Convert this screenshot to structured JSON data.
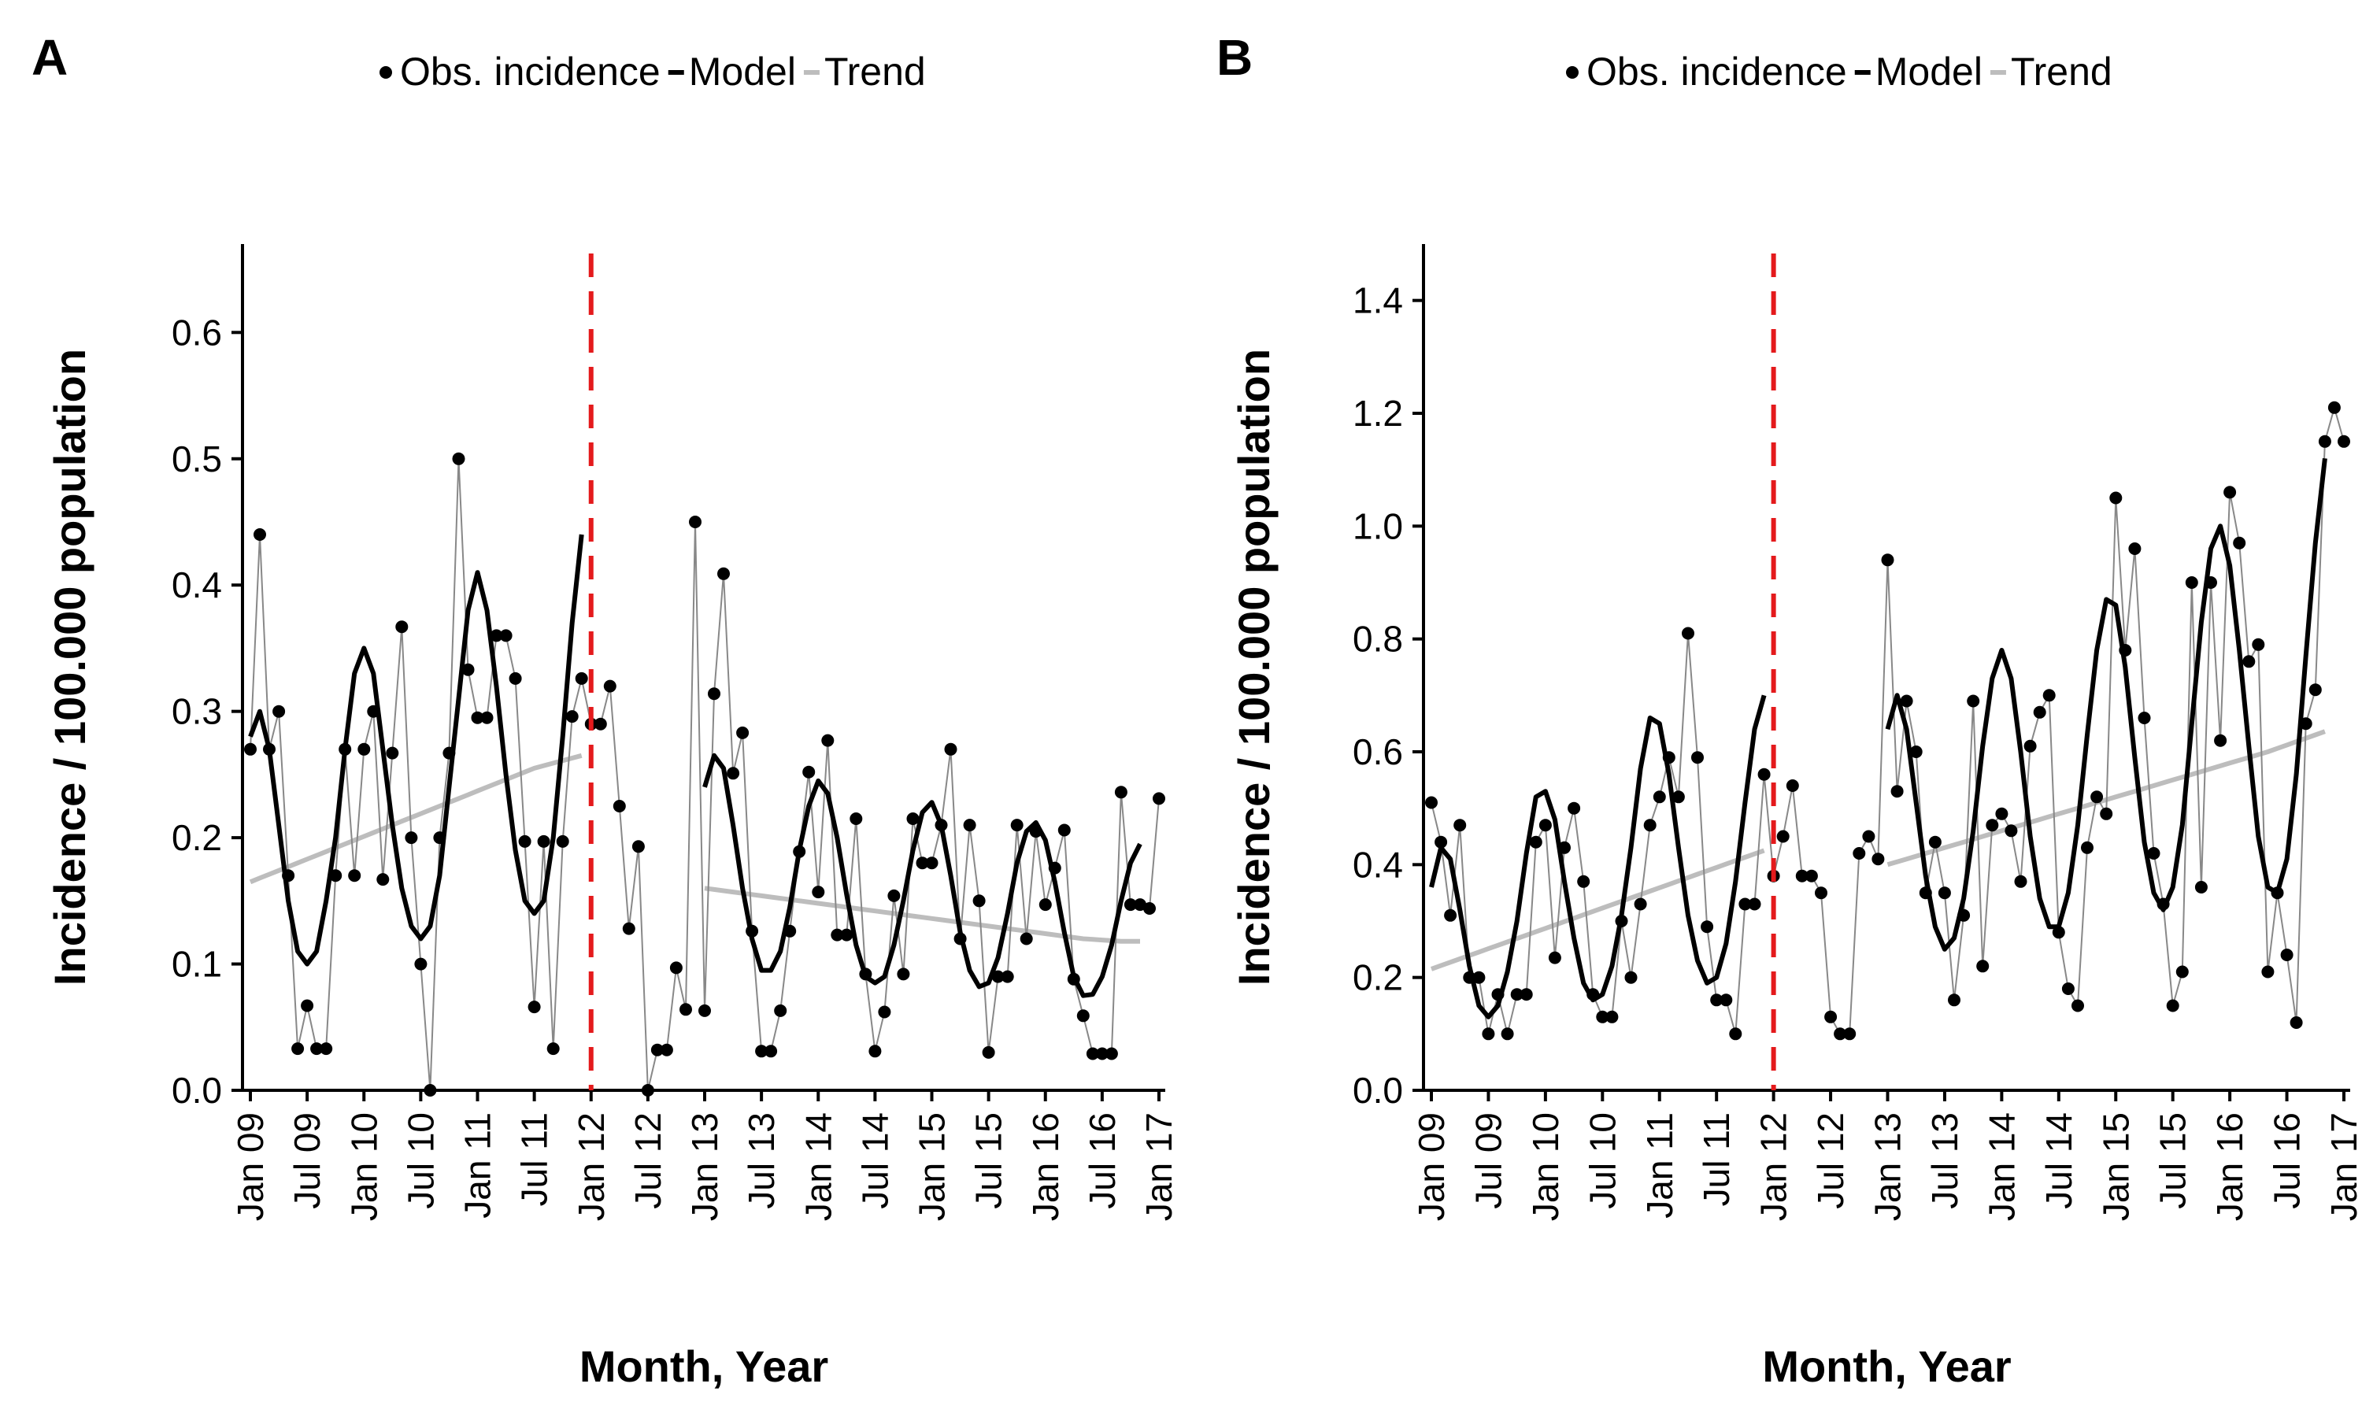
{
  "chart_data": [
    {
      "panel": "A",
      "type": "line",
      "xlabel": "Month, Year",
      "ylabel": "Incidence / 100.000 population",
      "ylim": [
        0,
        0.67
      ],
      "yticks": [
        "0.0",
        "0.1",
        "0.2",
        "0.3",
        "0.4",
        "0.5",
        "0.6"
      ],
      "xticks": [
        "Jan 09",
        "Jul 09",
        "Jan 10",
        "Jul 10",
        "Jan 11",
        "Jul 11",
        "Jan 12",
        "Jul 12",
        "Jan 13",
        "Jul 13",
        "Jan 14",
        "Jul 14",
        "Jan 15",
        "Jul 15",
        "Jan 16",
        "Jul 16",
        "Jan 17"
      ],
      "intervention": "Jan 12",
      "legend": [
        "Obs. incidence",
        "Model",
        "Trend"
      ],
      "legend_position": "top",
      "series": [
        {
          "name": "Obs. incidence",
          "values": [
            0.27,
            0.44,
            0.27,
            0.3,
            0.17,
            0.033,
            0.067,
            0.033,
            0.033,
            0.17,
            0.27,
            0.17,
            0.27,
            0.3,
            0.167,
            0.267,
            0.367,
            0.2,
            0.1,
            0.0,
            0.2,
            0.267,
            0.5,
            0.333,
            0.295,
            0.295,
            0.36,
            0.36,
            0.326,
            0.197,
            0.066,
            0.197,
            0.033,
            0.197,
            0.296,
            0.326,
            0.29,
            0.29,
            0.32,
            0.225,
            0.128,
            0.193,
            0.0,
            0.032,
            0.032,
            0.097,
            0.064,
            0.45,
            0.063,
            0.314,
            0.409,
            0.251,
            0.283,
            0.126,
            0.031,
            0.031,
            0.063,
            0.126,
            0.189,
            0.252,
            0.157,
            0.277,
            0.123,
            0.123,
            0.215,
            0.092,
            0.031,
            0.062,
            0.154,
            0.092,
            0.215,
            0.18,
            0.18,
            0.21,
            0.27,
            0.12,
            0.21,
            0.15,
            0.03,
            0.09,
            0.09,
            0.21,
            0.12,
            0.205,
            0.147,
            0.176,
            0.206,
            0.088,
            0.059,
            0.029,
            0.029,
            0.029,
            0.236,
            0.147,
            0.147,
            0.144,
            0.231
          ]
        },
        {
          "name": "Model",
          "segments": [
            [
              0.28,
              0.3,
              0.27,
              0.21,
              0.15,
              0.11,
              0.1,
              0.11,
              0.15,
              0.2,
              0.27,
              0.33,
              0.35,
              0.33,
              0.27,
              0.21,
              0.16,
              0.13,
              0.12,
              0.13,
              0.17,
              0.24,
              0.31,
              0.38,
              0.41,
              0.38,
              0.32,
              0.25,
              0.19,
              0.15,
              0.14,
              0.15,
              0.2,
              0.28,
              0.37,
              0.44
            ],
            [
              0.24,
              0.265,
              0.255,
              0.21,
              0.16,
              0.12,
              0.095,
              0.095,
              0.11,
              0.145,
              0.19,
              0.225,
              0.245,
              0.235,
              0.2,
              0.155,
              0.115,
              0.09,
              0.085,
              0.09,
              0.115,
              0.15,
              0.19,
              0.22,
              0.228,
              0.21,
              0.17,
              0.125,
              0.095,
              0.082,
              0.085,
              0.105,
              0.14,
              0.18,
              0.205,
              0.212,
              0.198,
              0.165,
              0.125,
              0.09,
              0.075,
              0.076,
              0.09,
              0.115,
              0.15,
              0.18,
              0.195
            ]
          ]
        },
        {
          "name": "Trend",
          "segments": [
            [
              0.165,
              0.168,
              0.171,
              0.174,
              0.177,
              0.18,
              0.183,
              0.186,
              0.189,
              0.192,
              0.195,
              0.198,
              0.201,
              0.204,
              0.207,
              0.21,
              0.213,
              0.216,
              0.219,
              0.222,
              0.225,
              0.228,
              0.231,
              0.234,
              0.237,
              0.24,
              0.243,
              0.246,
              0.249,
              0.252,
              0.255,
              0.257,
              0.259,
              0.261,
              0.263,
              0.265
            ],
            [
              0.16,
              0.159,
              0.158,
              0.157,
              0.156,
              0.155,
              0.154,
              0.153,
              0.152,
              0.151,
              0.15,
              0.149,
              0.148,
              0.147,
              0.146,
              0.145,
              0.144,
              0.143,
              0.142,
              0.141,
              0.14,
              0.139,
              0.138,
              0.137,
              0.136,
              0.135,
              0.134,
              0.133,
              0.132,
              0.131,
              0.13,
              0.129,
              0.128,
              0.127,
              0.126,
              0.125,
              0.124,
              0.123,
              0.122,
              0.121,
              0.12,
              0.1195,
              0.119,
              0.1185,
              0.118,
              0.118,
              0.118
            ]
          ]
        }
      ]
    },
    {
      "panel": "B",
      "type": "line",
      "xlabel": "Month, Year",
      "ylabel": "Incidence / 100.000 population",
      "ylim": [
        0,
        1.5
      ],
      "yticks": [
        "0.0",
        "0.2",
        "0.4",
        "0.6",
        "0.8",
        "1.0",
        "1.2",
        "1.4"
      ],
      "xticks": [
        "Jan 09",
        "Jul 09",
        "Jan 10",
        "Jul 10",
        "Jan 11",
        "Jul 11",
        "Jan 12",
        "Jul 12",
        "Jan 13",
        "Jul 13",
        "Jan 14",
        "Jul 14",
        "Jan 15",
        "Jul 15",
        "Jan 16",
        "Jul 16",
        "Jan 17"
      ],
      "intervention": "Jan 12",
      "legend": [
        "Obs. incidence",
        "Model",
        "Trend"
      ],
      "legend_position": "top",
      "series": [
        {
          "name": "Obs. incidence",
          "values": [
            0.51,
            0.44,
            0.31,
            0.47,
            0.2,
            0.2,
            0.1,
            0.17,
            0.1,
            0.17,
            0.17,
            0.44,
            0.47,
            0.235,
            0.43,
            0.5,
            0.37,
            0.17,
            0.13,
            0.13,
            0.3,
            0.2,
            0.33,
            0.47,
            0.52,
            0.59,
            0.52,
            0.81,
            0.59,
            0.29,
            0.16,
            0.16,
            0.1,
            0.33,
            0.33,
            0.56,
            0.38,
            0.45,
            0.54,
            0.38,
            0.38,
            0.35,
            0.13,
            0.1,
            0.1,
            0.42,
            0.45,
            0.41,
            0.94,
            0.53,
            0.69,
            0.6,
            0.35,
            0.44,
            0.35,
            0.16,
            0.31,
            0.69,
            0.22,
            0.47,
            0.49,
            0.46,
            0.37,
            0.61,
            0.67,
            0.7,
            0.28,
            0.18,
            0.15,
            0.43,
            0.52,
            0.49,
            1.05,
            0.78,
            0.96,
            0.66,
            0.42,
            0.33,
            0.15,
            0.21,
            0.9,
            0.36,
            0.9,
            0.62,
            1.06,
            0.97,
            0.76,
            0.79,
            0.21,
            0.35,
            0.24,
            0.12,
            0.65,
            0.71,
            1.15,
            1.21,
            1.15
          ]
        },
        {
          "name": "Model",
          "segments": [
            [
              0.36,
              0.43,
              0.41,
              0.32,
              0.22,
              0.15,
              0.13,
              0.15,
              0.21,
              0.3,
              0.42,
              0.52,
              0.53,
              0.48,
              0.37,
              0.27,
              0.19,
              0.16,
              0.17,
              0.22,
              0.31,
              0.43,
              0.57,
              0.66,
              0.65,
              0.56,
              0.43,
              0.31,
              0.23,
              0.19,
              0.2,
              0.26,
              0.37,
              0.51,
              0.64,
              0.7
            ],
            [
              0.64,
              0.7,
              0.64,
              0.51,
              0.38,
              0.29,
              0.25,
              0.27,
              0.34,
              0.46,
              0.61,
              0.73,
              0.78,
              0.73,
              0.6,
              0.45,
              0.34,
              0.29,
              0.29,
              0.35,
              0.47,
              0.63,
              0.78,
              0.87,
              0.86,
              0.75,
              0.59,
              0.44,
              0.35,
              0.32,
              0.36,
              0.47,
              0.65,
              0.83,
              0.96,
              1.0,
              0.93,
              0.78,
              0.61,
              0.45,
              0.36,
              0.35,
              0.41,
              0.56,
              0.77,
              0.97,
              1.12
            ]
          ]
        },
        {
          "name": "Trend",
          "segments": [
            [
              0.215,
              0.221,
              0.227,
              0.233,
              0.239,
              0.245,
              0.251,
              0.257,
              0.263,
              0.269,
              0.275,
              0.281,
              0.287,
              0.293,
              0.299,
              0.305,
              0.311,
              0.317,
              0.323,
              0.329,
              0.335,
              0.341,
              0.347,
              0.353,
              0.359,
              0.365,
              0.371,
              0.377,
              0.383,
              0.389,
              0.395,
              0.401,
              0.407,
              0.413,
              0.419,
              0.425
            ],
            [
              0.4,
              0.405,
              0.41,
              0.415,
              0.42,
              0.425,
              0.43,
              0.435,
              0.44,
              0.445,
              0.45,
              0.455,
              0.46,
              0.465,
              0.47,
              0.475,
              0.48,
              0.485,
              0.49,
              0.495,
              0.5,
              0.505,
              0.51,
              0.515,
              0.52,
              0.525,
              0.53,
              0.535,
              0.54,
              0.545,
              0.55,
              0.555,
              0.56,
              0.565,
              0.57,
              0.575,
              0.58,
              0.585,
              0.59,
              0.595,
              0.6,
              0.606,
              0.612,
              0.618,
              0.624,
              0.63,
              0.636
            ]
          ]
        }
      ]
    }
  ],
  "panels": [
    {
      "tag": "A"
    },
    {
      "tag": "B"
    }
  ],
  "colors": {
    "obs": "#000000",
    "obs_line": "#888888",
    "model": "#000000",
    "trend": "#bdbdbd",
    "intervention": "#e41a1c"
  }
}
